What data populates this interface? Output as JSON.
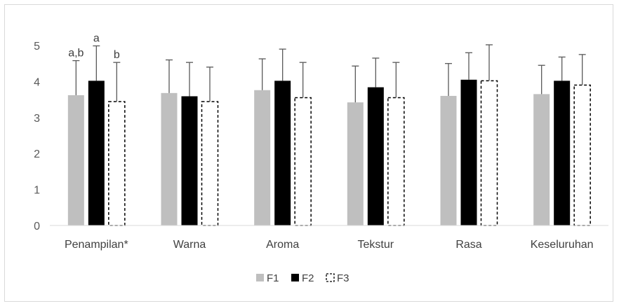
{
  "chart_data": {
    "type": "bar",
    "title": "",
    "xlabel": "",
    "ylabel": "",
    "ylim": [
      0,
      5
    ],
    "yticks": [
      0,
      1,
      2,
      3,
      4,
      5
    ],
    "grid": false,
    "legend_position": "bottom-center",
    "categories": [
      "Penampilan*",
      "Warna",
      "Aroma",
      "Tekstur",
      "Rasa",
      "Keseluruhan"
    ],
    "series": [
      {
        "name": "F1",
        "style": "solid-gray",
        "color": "#bfbfbf",
        "values": [
          3.62,
          3.68,
          3.76,
          3.42,
          3.6,
          3.65
        ],
        "error_upper": [
          4.58,
          4.6,
          4.63,
          4.43,
          4.5,
          4.45
        ]
      },
      {
        "name": "F2",
        "style": "solid-black",
        "color": "#000000",
        "values": [
          4.02,
          3.59,
          4.02,
          3.84,
          4.05,
          4.02
        ],
        "error_upper": [
          4.99,
          4.53,
          4.9,
          4.65,
          4.8,
          4.68
        ]
      },
      {
        "name": "F3",
        "style": "dashed-outline",
        "color": "#000000",
        "values": [
          3.44,
          3.44,
          3.55,
          3.55,
          4.02,
          3.9
        ],
        "error_upper": [
          4.53,
          4.4,
          4.53,
          4.53,
          5.02,
          4.75
        ]
      }
    ],
    "annotations": [
      {
        "category": "Penampilan*",
        "series": "F1",
        "text": "a,b"
      },
      {
        "category": "Penampilan*",
        "series": "F2",
        "text": "a"
      },
      {
        "category": "Penampilan*",
        "series": "F3",
        "text": "b"
      }
    ]
  }
}
